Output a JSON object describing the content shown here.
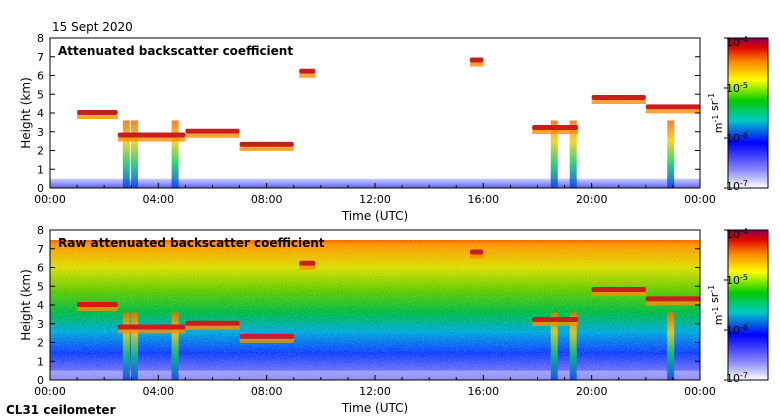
{
  "header": {
    "date": "15 Sept 2020"
  },
  "footer": {
    "instrument": "CL31 ceilometer"
  },
  "chart_data": [
    {
      "type": "heatmap",
      "title": "Attenuated backscatter coefficient",
      "xlabel": "Time (UTC)",
      "ylabel": "Height (km)",
      "x_ticks": [
        "00:00",
        "04:00",
        "08:00",
        "12:00",
        "16:00",
        "20:00",
        "00:00"
      ],
      "y_ticks": [
        "0",
        "1",
        "2",
        "3",
        "4",
        "5",
        "6",
        "7",
        "8"
      ],
      "xlim_hours": [
        0,
        24
      ],
      "ylim_km": [
        0,
        8
      ],
      "colorbar": {
        "scale": "log",
        "ticks": [
          "10-7",
          "10-6",
          "10-5",
          "10-4"
        ],
        "range": [
          1e-07,
          0.0001
        ],
        "units": "m-1 sr-1",
        "colormap": "rainbow"
      },
      "features": {
        "aerosol_layer_top_km": 0.5,
        "cloud_layers": [
          {
            "start_h": 1.0,
            "end_h": 2.5,
            "height_km": 4.0
          },
          {
            "start_h": 2.5,
            "end_h": 5.0,
            "height_km": 2.8
          },
          {
            "start_h": 5.0,
            "end_h": 7.0,
            "height_km": 3.0
          },
          {
            "start_h": 7.0,
            "end_h": 9.0,
            "height_km": 2.3
          },
          {
            "start_h": 17.8,
            "end_h": 19.5,
            "height_km": 3.2
          },
          {
            "start_h": 20.0,
            "end_h": 22.0,
            "height_km": 4.8
          },
          {
            "start_h": 22.0,
            "end_h": 24.0,
            "height_km": 4.3
          },
          {
            "start_h": 15.5,
            "end_h": 16.0,
            "height_km": 6.8
          },
          {
            "start_h": 9.2,
            "end_h": 9.8,
            "height_km": 6.2
          }
        ],
        "precipitation_h": [
          2.8,
          3.1,
          4.6,
          18.6,
          19.3,
          22.9
        ]
      }
    },
    {
      "type": "heatmap",
      "title": "Raw attenuated backscatter coefficient",
      "xlabel": "Time (UTC)",
      "ylabel": "Height (km)",
      "x_ticks": [
        "00:00",
        "04:00",
        "08:00",
        "12:00",
        "16:00",
        "20:00",
        "00:00"
      ],
      "y_ticks": [
        "0",
        "1",
        "2",
        "3",
        "4",
        "5",
        "6",
        "7",
        "8"
      ],
      "xlim_hours": [
        0,
        24
      ],
      "ylim_km": [
        0,
        8
      ],
      "colorbar": {
        "scale": "log",
        "ticks": [
          "10-7",
          "10-6",
          "10-5",
          "10-4"
        ],
        "range": [
          1e-07,
          0.0001
        ],
        "units": "m-1 sr-1",
        "colormap": "rainbow"
      }
    }
  ]
}
